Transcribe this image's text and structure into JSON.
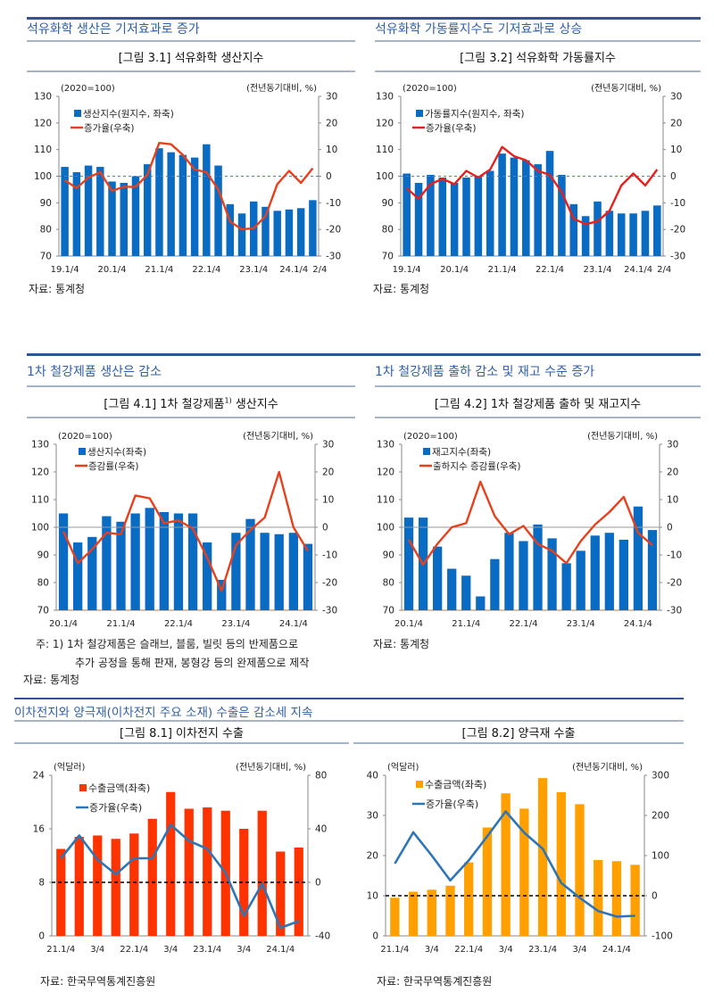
{
  "sections": [
    {
      "headings": [
        "석유화학 생산은 기저효과로 증가",
        "석유화학 가동률지수도 기저효과로 상승"
      ],
      "captions": [
        "[그림 3.1] 석유화학 생산지수",
        "[그림 3.2] 석유화학 가동률지수"
      ],
      "sources": [
        "자료: 통계청",
        "자료: 통계청"
      ]
    },
    {
      "headings": [
        "1차 철강제품 생산은 감소",
        "1차 철강제품 출하 감소 및 재고 수준 증가"
      ],
      "captions": [
        "[그림 4.1] 1차 철강제품",
        "1)",
        " 생산지수",
        "[그림 4.2] 1차 철강제품 출하 및 재고지수"
      ],
      "footnote": [
        "주: 1) 1차 철강제품은 슬래브, 블룸, 빌릿 등의 반제품으로",
        "추가 공정을 통해 판재, 봉형강 등의 완제품으로 제작"
      ],
      "sources": [
        "자료: 통계청",
        "자료: 통계청"
      ]
    },
    {
      "headings": [
        "이차전지와 양극재(이차전지 주요 소재) 수출은 감소세 지속"
      ],
      "captions": [
        "[그림 8.1] 이차전지 수출",
        "[그림 8.2] 양극재 수출"
      ],
      "sources": [
        "자료: 한국무역통계진흥원",
        "자료: 한국무역통계진흥원"
      ]
    }
  ],
  "chart_data": [
    {
      "type": "bar+line",
      "left_unit": "(2020=100)",
      "right_unit": "(전년동기대비, %)",
      "xtick_labels": [
        "19.1/4",
        "",
        "",
        "",
        "20.1/4",
        "",
        "",
        "",
        "21.1/4",
        "",
        "",
        "",
        "22.1/4",
        "",
        "",
        "",
        "23.1/4",
        "",
        "",
        "",
        "24.1/4",
        "2/4"
      ],
      "left_axis": {
        "ylim": [
          70,
          130
        ],
        "ticks": [
          70,
          80,
          90,
          100,
          110,
          120,
          130
        ]
      },
      "right_axis": {
        "ylim": [
          -30,
          30
        ],
        "ticks": [
          -30,
          -20,
          -10,
          0,
          10,
          20,
          30
        ]
      },
      "series": [
        {
          "name": "생산지수(원지수, 좌축)",
          "kind": "bar",
          "axis": "left",
          "color": "#0a6bc2",
          "values": [
            103.5,
            101.5,
            104,
            103.5,
            98,
            97.5,
            100,
            104.5,
            110.5,
            109,
            108,
            107,
            112,
            104,
            89.5,
            86,
            90.5,
            88.5,
            87,
            87.5,
            88,
            91
          ]
        },
        {
          "name": "증가율(우축)",
          "kind": "line",
          "axis": "right",
          "color": "#e8401c",
          "values": [
            -1.5,
            -4.5,
            -0.5,
            1.5,
            -5.5,
            -4,
            -4,
            0.5,
            12.5,
            12,
            8,
            2.5,
            1.5,
            -5,
            -17,
            -20,
            -19.5,
            -15,
            -3,
            2,
            -2.5,
            3
          ]
        }
      ],
      "zero_line": "blue-dotted"
    },
    {
      "type": "bar+line",
      "left_unit": "(2020=100)",
      "right_unit": "(전년동기대비, %)",
      "xtick_labels": [
        "19.1/4",
        "",
        "",
        "",
        "20.1/4",
        "",
        "",
        "",
        "21.1/4",
        "",
        "",
        "",
        "22.1/4",
        "",
        "",
        "",
        "23.1/4",
        "",
        "",
        "",
        "24.1/4",
        "2/4"
      ],
      "left_axis": {
        "ylim": [
          70,
          130
        ],
        "ticks": [
          70,
          80,
          90,
          100,
          110,
          120,
          130
        ]
      },
      "right_axis": {
        "ylim": [
          -30,
          30
        ],
        "ticks": [
          -30,
          -20,
          -10,
          0,
          10,
          20,
          30
        ]
      },
      "series": [
        {
          "name": "가동률지수(원지수, 좌축)",
          "kind": "bar",
          "axis": "left",
          "color": "#0a6bc2",
          "values": [
            101,
            97.5,
            100.5,
            99.5,
            97.5,
            99.5,
            100,
            102,
            108.5,
            107,
            106,
            104.5,
            109.5,
            100.5,
            89.5,
            85,
            90.5,
            87,
            86,
            86,
            87,
            89
          ]
        },
        {
          "name": "증가율(우축)",
          "kind": "line",
          "axis": "right",
          "color": "#e8201c",
          "values": [
            -4.5,
            -8.5,
            -3,
            -1,
            -3,
            2,
            -0.5,
            2.5,
            11,
            7.5,
            6,
            2,
            0.5,
            -6,
            -16,
            -18,
            -17,
            -13,
            -3.5,
            1,
            -3.5,
            2.5
          ]
        }
      ],
      "zero_line": "blue-dotted"
    },
    {
      "type": "bar+line",
      "left_unit": "(2020=100)",
      "right_unit": "(전년동기대비, %)",
      "xtick_labels": [
        "20.1/4",
        "",
        "",
        "",
        "21.1/4",
        "",
        "",
        "",
        "22.1/4",
        "",
        "",
        "",
        "23.1/4",
        "",
        "",
        "",
        "24.1/4",
        ""
      ],
      "left_axis": {
        "ylim": [
          70,
          130
        ],
        "ticks": [
          70,
          80,
          90,
          100,
          110,
          120,
          130
        ]
      },
      "right_axis": {
        "ylim": [
          -30,
          30
        ],
        "ticks": [
          -30,
          -20,
          -10,
          0,
          10,
          20,
          30
        ]
      },
      "series": [
        {
          "name": "생산지수(좌축)",
          "kind": "bar",
          "axis": "left",
          "color": "#0a6bc2",
          "values": [
            105,
            94.5,
            96.5,
            104,
            102,
            105,
            107,
            105.5,
            105,
            105,
            94.5,
            81,
            98,
            103,
            98,
            97.5,
            98,
            94
          ]
        },
        {
          "name": "증감률(우축)",
          "kind": "line",
          "axis": "right",
          "color": "#e8401c",
          "values": [
            -1.5,
            -13,
            -8,
            -2,
            -2.5,
            11.5,
            10.5,
            1.5,
            2.5,
            -0.5,
            -11,
            -23,
            -6.5,
            -1,
            3.5,
            20,
            0,
            -8.5
          ]
        }
      ],
      "zero_line": "gray-solid"
    },
    {
      "type": "bar+line",
      "left_unit": "(2020=100)",
      "right_unit": "(전년동기대비, %)",
      "xtick_labels": [
        "20.1/4",
        "",
        "",
        "",
        "21.1/4",
        "",
        "",
        "",
        "22.1/4",
        "",
        "",
        "",
        "23.1/4",
        "",
        "",
        "",
        "24.1/4",
        ""
      ],
      "left_axis": {
        "ylim": [
          70,
          130
        ],
        "ticks": [
          70,
          80,
          90,
          100,
          110,
          120,
          130
        ]
      },
      "right_axis": {
        "ylim": [
          -30,
          30
        ],
        "ticks": [
          -30,
          -20,
          -10,
          0,
          10,
          20,
          30
        ]
      },
      "series": [
        {
          "name": "재고지수(좌축)",
          "kind": "bar",
          "axis": "left",
          "color": "#0a6bc2",
          "values": [
            103.5,
            103.5,
            93,
            85,
            82.5,
            75,
            88.5,
            98,
            95,
            101,
            96,
            87,
            91.5,
            97,
            98,
            95.5,
            107.5,
            99
          ]
        },
        {
          "name": "출하지수 증감률(우축)",
          "kind": "line",
          "axis": "right",
          "color": "#e8401c",
          "values": [
            -4.5,
            -13.5,
            -6,
            0,
            1.5,
            16.5,
            4,
            -2.5,
            0.5,
            -6,
            -8.5,
            -13,
            -5,
            1,
            5.5,
            11,
            -2,
            -6.5
          ]
        }
      ],
      "zero_line": "gray-solid"
    },
    {
      "type": "bar+line",
      "left_unit": "(억달러)",
      "right_unit": "(전년동기대비, %)",
      "xtick_labels": [
        "21.1/4",
        "",
        "3/4",
        "",
        "22.1/4",
        "",
        "3/4",
        "",
        "23.1/4",
        "",
        "3/4",
        "",
        "24.1/4",
        ""
      ],
      "left_axis": {
        "ylim": [
          0,
          24
        ],
        "ticks": [
          0,
          8,
          16,
          24
        ]
      },
      "right_axis": {
        "ylim": [
          -40,
          80
        ],
        "ticks": [
          -40,
          0,
          40,
          80
        ]
      },
      "series": [
        {
          "name": "수출금액(좌축)",
          "kind": "bar",
          "axis": "left",
          "color": "#ff3300",
          "values": [
            13,
            14.8,
            15,
            14.5,
            15.3,
            17.5,
            21.5,
            19,
            19.2,
            18.7,
            16,
            18.7,
            12.6,
            13.2
          ]
        },
        {
          "name": "증가율(우축)",
          "kind": "line",
          "axis": "right",
          "color": "#2e75b6",
          "values": [
            18,
            35,
            17,
            6,
            18,
            18,
            43,
            31,
            25,
            7,
            -25,
            -1,
            -34,
            -29
          ]
        }
      ],
      "zero_line": "black-dashed"
    },
    {
      "type": "bar+line",
      "left_unit": "(억달러)",
      "right_unit": "(전년동기대비, %)",
      "xtick_labels": [
        "21.1/4",
        "",
        "3/4",
        "",
        "22.1/4",
        "",
        "3/4",
        "",
        "23.1/4",
        "",
        "3/4",
        "",
        "24.1/4",
        ""
      ],
      "left_axis": {
        "ylim": [
          0,
          40
        ],
        "ticks": [
          0,
          10,
          20,
          30,
          40
        ]
      },
      "right_axis": {
        "ylim": [
          -100,
          300
        ],
        "ticks": [
          -100,
          0,
          100,
          200,
          300
        ]
      },
      "series": [
        {
          "name": "수출금액(좌축)",
          "kind": "bar",
          "axis": "left",
          "color": "#ffa000",
          "values": [
            9.5,
            11,
            11.5,
            12.5,
            18.3,
            27,
            35.5,
            31.7,
            39.3,
            35.8,
            32.8,
            18.9,
            18.6,
            17.7
          ]
        },
        {
          "name": "증가율(우축)",
          "kind": "line",
          "axis": "right",
          "color": "#2e75b6",
          "values": [
            80,
            158,
            100,
            38,
            88,
            148,
            210,
            157,
            117,
            32,
            -5,
            -38,
            -52,
            -50
          ]
        }
      ],
      "zero_line": "black-dashed"
    }
  ]
}
